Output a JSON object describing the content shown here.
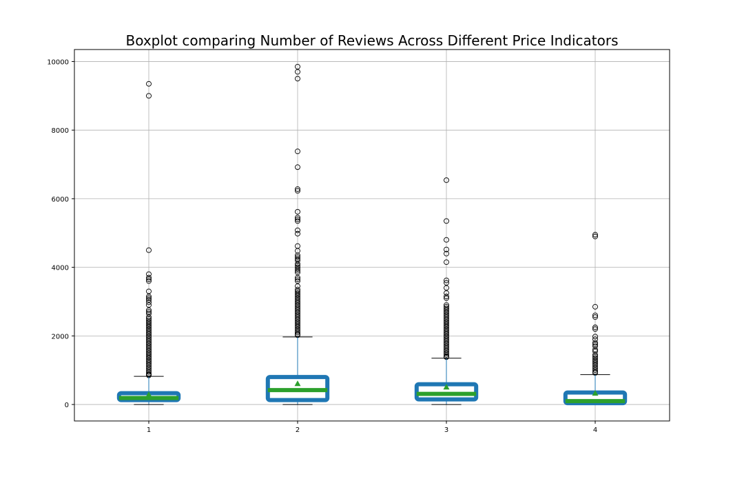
{
  "chart_data": {
    "type": "box",
    "title": "Boxplot comparing Number of Reviews Across Different Price Indicators",
    "xlabel": "",
    "ylabel": "",
    "categories": [
      "1",
      "2",
      "3",
      "4"
    ],
    "ylim": [
      -480,
      10350
    ],
    "yticks": [
      0,
      2000,
      4000,
      6000,
      8000,
      10000
    ],
    "grid": true,
    "colors": {
      "box": "#1f77b4",
      "median": "#2ca02c",
      "mean": "#2ca02c",
      "whisker": "#1f77b4",
      "cap": "#000000",
      "grid": "#b0b0b0"
    },
    "boxes": [
      {
        "category": "1",
        "whislo": 0,
        "q1": 130,
        "median": 190,
        "q3": 330,
        "whishi": 820,
        "mean": 290,
        "fliers": [
          9350,
          9000,
          4500,
          3800,
          3700,
          3650,
          3600,
          3300,
          3150,
          3100,
          3050,
          2980,
          2900,
          2750,
          2700,
          2650,
          2550,
          2500,
          2450,
          2400,
          2350,
          2300,
          2250,
          2200,
          2150,
          2100,
          2050,
          2000,
          1950,
          1900,
          1850,
          1800,
          1750,
          1700,
          1650,
          1600,
          1550,
          1500,
          1450,
          1400,
          1350,
          1300,
          1250,
          1200,
          1150,
          1100,
          1050,
          1000,
          950,
          900,
          870,
          850
        ]
      },
      {
        "category": "2",
        "whislo": 0,
        "q1": 130,
        "median": 420,
        "q3": 800,
        "whishi": 1970,
        "mean": 610,
        "fliers": [
          9850,
          9700,
          9500,
          7380,
          6920,
          6280,
          6230,
          5620,
          5450,
          5400,
          5350,
          5080,
          4980,
          4620,
          4480,
          4350,
          4300,
          4250,
          4200,
          4100,
          4050,
          4000,
          3950,
          3900,
          3850,
          3700,
          3650,
          3600,
          3450,
          3350,
          3300,
          3250,
          3200,
          3150,
          3100,
          3050,
          3000,
          2950,
          2900,
          2850,
          2800,
          2750,
          2700,
          2650,
          2600,
          2550,
          2500,
          2450,
          2400,
          2350,
          2300,
          2250,
          2200,
          2150,
          2100,
          2050,
          2020
        ]
      },
      {
        "category": "3",
        "whislo": 0,
        "q1": 150,
        "median": 310,
        "q3": 590,
        "whishi": 1350,
        "mean": 510,
        "fliers": [
          6540,
          5350,
          4800,
          4520,
          4400,
          4150,
          3620,
          3550,
          3400,
          3250,
          3150,
          3100,
          2900,
          2850,
          2800,
          2750,
          2700,
          2650,
          2600,
          2550,
          2500,
          2450,
          2400,
          2350,
          2300,
          2250,
          2200,
          2150,
          2100,
          2050,
          2000,
          1950,
          1900,
          1850,
          1800,
          1750,
          1700,
          1650,
          1600,
          1550,
          1500,
          1450,
          1400,
          1380
        ]
      },
      {
        "category": "4",
        "whislo": 0,
        "q1": 40,
        "median": 100,
        "q3": 350,
        "whishi": 870,
        "mean": 330,
        "fliers": [
          4950,
          4900,
          2850,
          2600,
          2550,
          2250,
          2200,
          1980,
          1900,
          1800,
          1750,
          1700,
          1600,
          1550,
          1450,
          1400,
          1350,
          1300,
          1250,
          1200,
          1150,
          1100,
          1050,
          1000,
          950,
          920
        ]
      }
    ]
  }
}
